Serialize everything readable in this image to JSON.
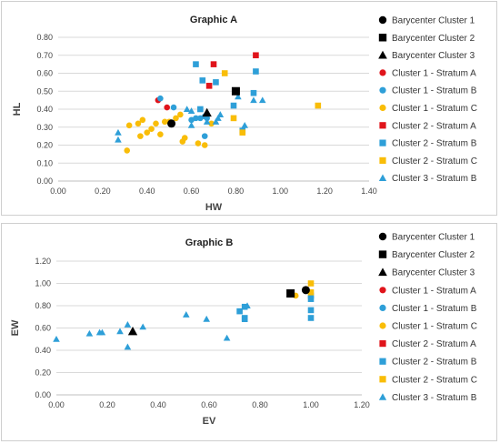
{
  "colors": {
    "black": "#000000",
    "red": "#e0141b",
    "blue": "#2e9fd8",
    "yellow": "#f9bd08"
  },
  "legend": [
    {
      "name": "Barycenter Cluster 1",
      "shape": "circle",
      "color": "#000000"
    },
    {
      "name": "Barycenter Cluster 2",
      "shape": "square",
      "color": "#000000"
    },
    {
      "name": "Barycenter Cluster 3",
      "shape": "triangle",
      "color": "#000000"
    },
    {
      "name": "Cluster 1 - Stratum A",
      "shape": "circle",
      "color": "#e0141b"
    },
    {
      "name": "Cluster 1 - Stratum B",
      "shape": "circle",
      "color": "#2e9fd8"
    },
    {
      "name": "Cluster 1 - Stratum C",
      "shape": "circle",
      "color": "#f9bd08"
    },
    {
      "name": "Cluster 2 - Stratum A",
      "shape": "square",
      "color": "#e0141b"
    },
    {
      "name": "Cluster 2 -  Stratum B",
      "shape": "square",
      "color": "#2e9fd8"
    },
    {
      "name": "Cluster 2 - Stratum C",
      "shape": "square",
      "color": "#f9bd08"
    },
    {
      "name": "Cluster 3 - Stratum B",
      "shape": "triangle",
      "color": "#2e9fd8"
    }
  ],
  "chart_data": [
    {
      "type": "scatter",
      "title": "Graphic A",
      "xlabel": "HW",
      "ylabel": "HL",
      "xlim": [
        0,
        1.4
      ],
      "ylim": [
        0,
        0.8
      ],
      "xticks": [
        "0.00",
        "0.20",
        "0.40",
        "0.60",
        "0.80",
        "1.00",
        "1.20",
        "1.40"
      ],
      "yticks": [
        "0.00",
        "0.10",
        "0.20",
        "0.30",
        "0.40",
        "0.50",
        "0.60",
        "0.70",
        "0.80"
      ],
      "grid": "horizontal",
      "legend_position": "right",
      "series": [
        {
          "name": "Barycenter Cluster 1",
          "shape": "circle",
          "color": "#000000",
          "points": [
            [
              0.51,
              0.32
            ]
          ]
        },
        {
          "name": "Barycenter Cluster 2",
          "shape": "square",
          "color": "#000000",
          "points": [
            [
              0.8,
              0.5
            ]
          ]
        },
        {
          "name": "Barycenter Cluster 3",
          "shape": "triangle",
          "color": "#000000",
          "points": [
            [
              0.67,
              0.38
            ]
          ]
        },
        {
          "name": "Cluster 1 - Stratum A",
          "shape": "circle",
          "color": "#e0141b",
          "points": [
            [
              0.45,
              0.45
            ],
            [
              0.49,
              0.41
            ]
          ]
        },
        {
          "name": "Cluster 1 - Stratum B",
          "shape": "circle",
          "color": "#2e9fd8",
          "points": [
            [
              0.46,
              0.46
            ],
            [
              0.52,
              0.41
            ],
            [
              0.6,
              0.34
            ],
            [
              0.62,
              0.35
            ],
            [
              0.64,
              0.35
            ],
            [
              0.66,
              0.36
            ],
            [
              0.67,
              0.35
            ],
            [
              0.66,
              0.25
            ]
          ]
        },
        {
          "name": "Cluster 1 - Stratum C",
          "shape": "circle",
          "color": "#f9bd08",
          "points": [
            [
              0.31,
              0.17
            ],
            [
              0.32,
              0.31
            ],
            [
              0.36,
              0.32
            ],
            [
              0.38,
              0.34
            ],
            [
              0.37,
              0.25
            ],
            [
              0.4,
              0.27
            ],
            [
              0.42,
              0.29
            ],
            [
              0.44,
              0.32
            ],
            [
              0.46,
              0.26
            ],
            [
              0.48,
              0.33
            ],
            [
              0.5,
              0.33
            ],
            [
              0.53,
              0.35
            ],
            [
              0.55,
              0.37
            ],
            [
              0.56,
              0.22
            ],
            [
              0.57,
              0.24
            ],
            [
              0.63,
              0.21
            ],
            [
              0.66,
              0.2
            ],
            [
              0.69,
              0.32
            ]
          ]
        },
        {
          "name": "Cluster 2 - Stratum A",
          "shape": "square",
          "color": "#e0141b",
          "points": [
            [
              0.7,
              0.65
            ],
            [
              0.68,
              0.53
            ],
            [
              0.89,
              0.7
            ]
          ]
        },
        {
          "name": "Cluster 2 -  Stratum B",
          "shape": "square",
          "color": "#2e9fd8",
          "points": [
            [
              0.62,
              0.65
            ],
            [
              0.65,
              0.56
            ],
            [
              0.64,
              0.4
            ],
            [
              0.71,
              0.55
            ],
            [
              0.79,
              0.42
            ],
            [
              0.88,
              0.49
            ],
            [
              0.89,
              0.61
            ],
            [
              0.83,
              0.28
            ]
          ]
        },
        {
          "name": "Cluster 2 - Stratum C",
          "shape": "square",
          "color": "#f9bd08",
          "points": [
            [
              0.75,
              0.6
            ],
            [
              0.79,
              0.35
            ],
            [
              1.17,
              0.42
            ],
            [
              0.83,
              0.27
            ]
          ]
        },
        {
          "name": "Cluster 3 - Stratum B",
          "shape": "triangle",
          "color": "#2e9fd8",
          "points": [
            [
              0.27,
              0.27
            ],
            [
              0.27,
              0.23
            ],
            [
              0.58,
              0.4
            ],
            [
              0.6,
              0.31
            ],
            [
              0.67,
              0.33
            ],
            [
              0.71,
              0.33
            ],
            [
              0.72,
              0.35
            ],
            [
              0.73,
              0.37
            ],
            [
              0.81,
              0.47
            ],
            [
              0.84,
              0.31
            ],
            [
              0.88,
              0.45
            ],
            [
              0.92,
              0.45
            ],
            [
              0.6,
              0.39
            ]
          ]
        }
      ]
    },
    {
      "type": "scatter",
      "title": "Graphic B",
      "xlabel": "EV",
      "ylabel": "EW",
      "xlim": [
        0,
        1.2
      ],
      "ylim": [
        0,
        1.2
      ],
      "xticks": [
        "0.00",
        "0.20",
        "0.40",
        "0.60",
        "0.80",
        "1.00",
        "1.20"
      ],
      "yticks": [
        "0.00",
        "0.20",
        "0.40",
        "0.60",
        "0.80",
        "1.00",
        "1.20"
      ],
      "grid": "horizontal",
      "legend_position": "right",
      "series": [
        {
          "name": "Barycenter Cluster 1",
          "shape": "circle",
          "color": "#000000",
          "points": [
            [
              0.98,
              0.94
            ]
          ]
        },
        {
          "name": "Barycenter Cluster 2",
          "shape": "square",
          "color": "#000000",
          "points": [
            [
              0.92,
              0.91
            ]
          ]
        },
        {
          "name": "Barycenter Cluster 3",
          "shape": "triangle",
          "color": "#000000",
          "points": [
            [
              0.3,
              0.57
            ]
          ]
        },
        {
          "name": "Cluster 1 - Stratum A",
          "shape": "circle",
          "color": "#e0141b",
          "points": []
        },
        {
          "name": "Cluster 1 - Stratum B",
          "shape": "circle",
          "color": "#2e9fd8",
          "points": []
        },
        {
          "name": "Cluster 1 - Stratum C",
          "shape": "circle",
          "color": "#f9bd08",
          "points": [
            [
              0.94,
              0.89
            ]
          ]
        },
        {
          "name": "Cluster 2 - Stratum A",
          "shape": "square",
          "color": "#e0141b",
          "points": []
        },
        {
          "name": "Cluster 2 -  Stratum B",
          "shape": "square",
          "color": "#2e9fd8",
          "points": [
            [
              0.72,
              0.75
            ],
            [
              0.74,
              0.79
            ],
            [
              0.74,
              0.69
            ],
            [
              0.74,
              0.68
            ],
            [
              1.0,
              0.89
            ],
            [
              1.0,
              0.86
            ],
            [
              1.0,
              0.76
            ],
            [
              1.0,
              0.69
            ]
          ]
        },
        {
          "name": "Cluster 2 - Stratum C",
          "shape": "square",
          "color": "#f9bd08",
          "points": [
            [
              1.0,
              1.0
            ],
            [
              1.0,
              0.92
            ]
          ]
        },
        {
          "name": "Cluster 3 - Stratum B",
          "shape": "triangle",
          "color": "#2e9fd8",
          "points": [
            [
              0.0,
              0.5
            ],
            [
              0.13,
              0.55
            ],
            [
              0.17,
              0.56
            ],
            [
              0.18,
              0.56
            ],
            [
              0.25,
              0.57
            ],
            [
              0.28,
              0.63
            ],
            [
              0.28,
              0.43
            ],
            [
              0.34,
              0.61
            ],
            [
              0.51,
              0.72
            ],
            [
              0.59,
              0.68
            ],
            [
              0.67,
              0.51
            ],
            [
              0.75,
              0.8
            ]
          ]
        }
      ]
    }
  ]
}
